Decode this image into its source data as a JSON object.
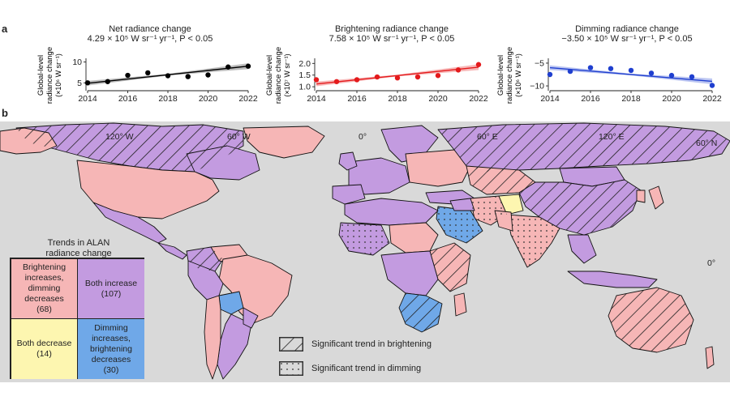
{
  "panels": {
    "a": "a",
    "b": "b"
  },
  "chart_data": [
    {
      "type": "line",
      "id": "net",
      "title_line1": "Net radiance change",
      "title_line2": "4.29 × 10⁵ W sr⁻¹ yr⁻¹, P < 0.05",
      "ylabel_line1": "Global-level",
      "ylabel_line2": "radiance change",
      "ylabel_line3": "(×10⁶ W sr⁻¹)",
      "color": "#000000",
      "band_color": "#a8a8a8",
      "xlim": [
        2014,
        2022
      ],
      "ylim": [
        3.5,
        10.5
      ],
      "xticks": [
        2014,
        2016,
        2018,
        2020,
        2022
      ],
      "yticks": [
        5,
        10
      ],
      "x": [
        2014,
        2015,
        2016,
        2017,
        2018,
        2019,
        2020,
        2021,
        2022
      ],
      "values": [
        5.0,
        5.3,
        6.8,
        7.4,
        6.7,
        6.5,
        6.9,
        8.8,
        9.0
      ],
      "trend": [
        4.9,
        9.0
      ]
    },
    {
      "type": "line",
      "id": "brightening",
      "title_line1": "Brightening radiance change",
      "title_line2": "7.58 × 10⁵ W sr⁻¹ yr⁻¹, P < 0.05",
      "ylabel_line1": "Global-level",
      "ylabel_line2": "radiance change",
      "ylabel_line3": "(×10⁷ W sr⁻¹)",
      "color": "#e41a1c",
      "band_color": "#f4a0a0",
      "xlim": [
        2014,
        2022
      ],
      "ylim": [
        0.9,
        2.15
      ],
      "xticks": [
        2014,
        2016,
        2018,
        2020,
        2022
      ],
      "yticks": [
        1.0,
        1.5,
        2.0
      ],
      "ytick_labels": [
        "1.0",
        "1.5",
        "2.0"
      ],
      "x": [
        2014,
        2015,
        2016,
        2017,
        2018,
        2019,
        2020,
        2021,
        2022
      ],
      "values": [
        1.3,
        1.22,
        1.3,
        1.42,
        1.38,
        1.42,
        1.48,
        1.72,
        1.95
      ],
      "trend": [
        1.12,
        1.84
      ]
    },
    {
      "type": "line",
      "id": "dimming",
      "title_line1": "Dimming radiance change",
      "title_line2": "−3.50 × 10⁵ W sr⁻¹ yr⁻¹, P < 0.05",
      "ylabel_line1": "Global-level",
      "ylabel_line2": "radiance change",
      "ylabel_line3": "(×10⁶ W sr⁻¹)",
      "color": "#1f3fcf",
      "band_color": "#a5b3ee",
      "xlim": [
        2014,
        2022
      ],
      "ylim": [
        -10.7,
        -4.3
      ],
      "xticks": [
        2014,
        2016,
        2018,
        2020,
        2022
      ],
      "yticks": [
        -5,
        -10
      ],
      "ytick_labels": [
        "−5",
        "−10"
      ],
      "x": [
        2014,
        2015,
        2016,
        2017,
        2018,
        2019,
        2020,
        2021,
        2022
      ],
      "values": [
        -7.5,
        -6.8,
        -6.0,
        -6.2,
        -6.6,
        -7.2,
        -7.7,
        -8.0,
        -9.9
      ],
      "trend": [
        -6.0,
        -9.0
      ]
    }
  ],
  "map": {
    "lat_labels": [
      "60° N",
      "0°"
    ],
    "lon_labels": [
      "120° W",
      "60° W",
      "0°",
      "60° E",
      "120° E"
    ],
    "colors": {
      "ocean": "#d9d9d9",
      "brightening_dimming_decreases": "#f6b6b6",
      "both_increase": "#c39be0",
      "both_decrease": "#fdf6b0",
      "dimming_brightening_decreases": "#6fa8e8"
    }
  },
  "legend": {
    "title_line1": "Trends in ALAN",
    "title_line2": "radiance change",
    "quadrants": [
      {
        "label": "Brightening increases, dimming decreases",
        "count": "(68)",
        "color": "#f6b6b6"
      },
      {
        "label": "Both increase",
        "count": "(107)",
        "color": "#c39be0"
      },
      {
        "label": "Both decrease",
        "count": "(14)",
        "color": "#fdf6b0"
      },
      {
        "label": "Dimming increases, brightening decreases",
        "count": "(30)",
        "color": "#6fa8e8"
      }
    ],
    "significance": [
      {
        "label": "Significant trend in brightening",
        "pattern": "hatch"
      },
      {
        "label": "Significant trend in dimming",
        "pattern": "dots"
      }
    ]
  }
}
